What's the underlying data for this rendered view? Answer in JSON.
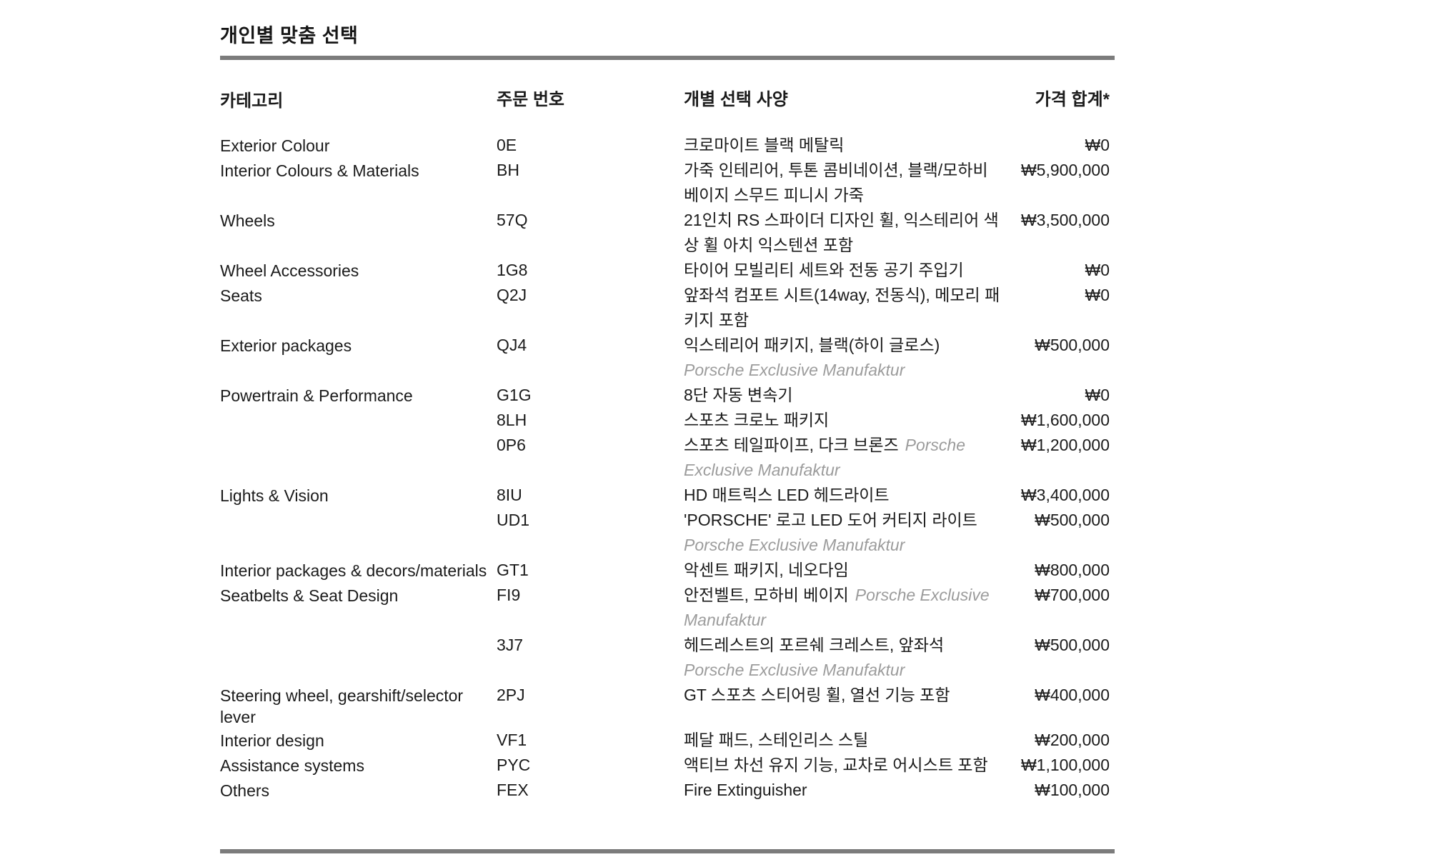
{
  "page": {
    "title": "개인별 맞춤 선택"
  },
  "colors": {
    "text": "#1a1a1a",
    "note_gray": "#9c9c9c",
    "rule_gray": "#7c7c7c",
    "background": "#ffffff"
  },
  "table": {
    "headers": {
      "category": "카테고리",
      "code": "주문 번호",
      "spec": "개별 선택 사양",
      "price": "가격 합계*"
    },
    "rows": [
      {
        "category": "Exterior Colour",
        "code": "0E",
        "spec": "크로마이트 블랙 메탈릭",
        "note": "",
        "note_block": false,
        "price": "₩0"
      },
      {
        "category": "Interior Colours & Materials",
        "code": "BH",
        "spec": "가죽 인테리어, 투톤 콤비네이션, 블랙/모하비 베이지 스무드 피니시 가죽",
        "note": "",
        "note_block": false,
        "price": "₩5,900,000"
      },
      {
        "category": "Wheels",
        "code": "57Q",
        "spec": "21인치 RS 스파이더 디자인 휠, 익스테리어 색상 휠 아치 익스텐션 포함",
        "note": "",
        "note_block": false,
        "price": "₩3,500,000"
      },
      {
        "category": "Wheel Accessories",
        "code": "1G8",
        "spec": "타이어 모빌리티 세트와 전동 공기 주입기",
        "note": "",
        "note_block": false,
        "price": "₩0"
      },
      {
        "category": "Seats",
        "code": "Q2J",
        "spec": "앞좌석 컴포트 시트(14way, 전동식), 메모리 패키지 포함",
        "note": "",
        "note_block": false,
        "price": "₩0"
      },
      {
        "category": "Exterior packages",
        "code": "QJ4",
        "spec": "익스테리어 패키지, 블랙(하이 글로스)",
        "note": "Porsche Exclusive Manufaktur",
        "note_block": true,
        "price": "₩500,000"
      },
      {
        "category": "Powertrain & Performance",
        "code": "G1G",
        "spec": "8단 자동 변속기",
        "note": "",
        "note_block": false,
        "price": "₩0"
      },
      {
        "category": "",
        "code": "8LH",
        "spec": "스포츠 크로노 패키지",
        "note": "",
        "note_block": false,
        "price": "₩1,600,000"
      },
      {
        "category": "",
        "code": "0P6",
        "spec": "스포츠 테일파이프, 다크 브론즈",
        "note": "Porsche Exclusive Manufaktur",
        "note_block": false,
        "price": "₩1,200,000"
      },
      {
        "category": "Lights & Vision",
        "code": "8IU",
        "spec": "HD 매트릭스 LED 헤드라이트",
        "note": "",
        "note_block": false,
        "price": "₩3,400,000"
      },
      {
        "category": "",
        "code": "UD1",
        "spec": "'PORSCHE' 로고 LED 도어 커티지 라이트",
        "note": "Porsche Exclusive Manufaktur",
        "note_block": true,
        "price": "₩500,000"
      },
      {
        "category": "Interior packages & decors/materials",
        "code": "GT1",
        "spec": "악센트 패키지, 네오다임",
        "note": "",
        "note_block": false,
        "price": "₩800,000"
      },
      {
        "category": "Seatbelts & Seat Design",
        "code": "FI9",
        "spec": "안전벨트, 모하비 베이지",
        "note": "Porsche Exclusive Manufaktur",
        "note_block": false,
        "price": "₩700,000"
      },
      {
        "category": "",
        "code": "3J7",
        "spec": "헤드레스트의 포르쉐 크레스트, 앞좌석",
        "note": "Porsche Exclusive Manufaktur",
        "note_block": true,
        "price": "₩500,000"
      },
      {
        "category": "Steering wheel, gearshift/selector lever",
        "code": "2PJ",
        "spec": "GT 스포츠 스티어링 휠, 열선 기능 포함",
        "note": "",
        "note_block": false,
        "price": "₩400,000"
      },
      {
        "category": "Interior design",
        "code": "VF1",
        "spec": "페달 패드, 스테인리스 스틸",
        "note": "",
        "note_block": false,
        "price": "₩200,000"
      },
      {
        "category": "Assistance systems",
        "code": "PYC",
        "spec": "액티브 차선 유지 기능, 교차로 어시스트 포함",
        "note": "",
        "note_block": false,
        "price": "₩1,100,000"
      },
      {
        "category": "Others",
        "code": "FEX",
        "spec": "Fire Extinguisher",
        "note": "",
        "note_block": false,
        "price": "₩100,000"
      }
    ]
  }
}
